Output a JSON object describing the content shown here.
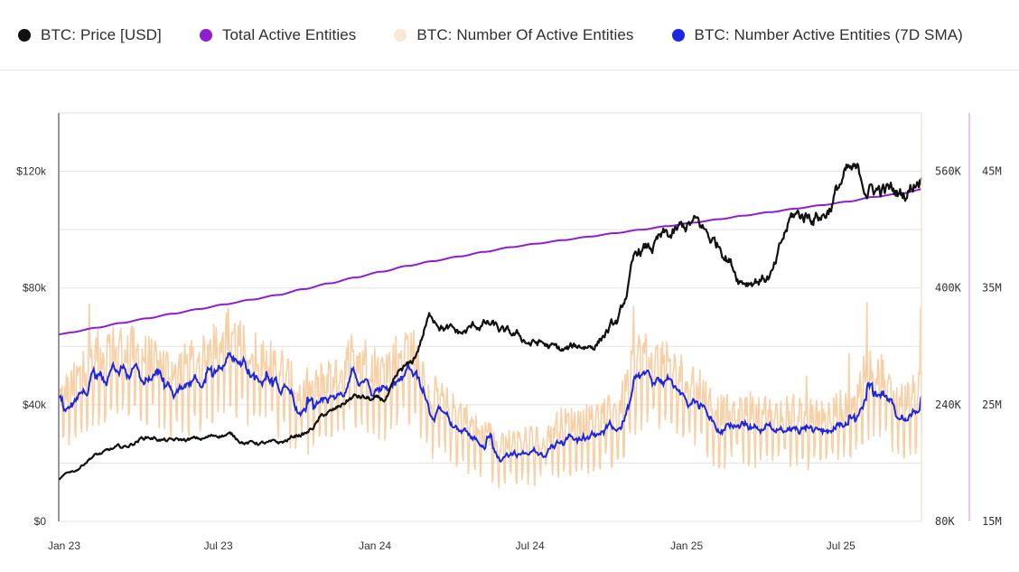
{
  "legend": [
    {
      "label": "BTC: Price [USD]",
      "color": "#111111"
    },
    {
      "label": "Total Active Entities",
      "color": "#8d1fcf"
    },
    {
      "label": "BTC: Number Of Active Entities",
      "color": "#fbe7d3"
    },
    {
      "label": "BTC: Number Active Entities (7D SMA)",
      "color": "#1c28e0"
    }
  ],
  "chart_data": {
    "type": "line",
    "title": "",
    "x_ticks": [
      "Jan 23",
      "Jul 23",
      "Jan 24",
      "Jul 24",
      "Jan 25",
      "Jul 25"
    ],
    "x_range": [
      "2023-01-01",
      "2025-10-10"
    ],
    "months": [
      "2023-01",
      "2023-02",
      "2023-03",
      "2023-04",
      "2023-05",
      "2023-06",
      "2023-07",
      "2023-08",
      "2023-09",
      "2023-10",
      "2023-11",
      "2023-12",
      "2024-01",
      "2024-02",
      "2024-03",
      "2024-04",
      "2024-05",
      "2024-06",
      "2024-07",
      "2024-08",
      "2024-09",
      "2024-10",
      "2024-11",
      "2024-12",
      "2025-01",
      "2025-02",
      "2025-03",
      "2025-04",
      "2025-05",
      "2025-06",
      "2025-07",
      "2025-08",
      "2025-09",
      "2025-10"
    ],
    "axes": {
      "left": {
        "label": "BTC: Price [USD]",
        "ticks": [
          "$0",
          "$40k",
          "$80k",
          "$120k"
        ],
        "tick_values": [
          0,
          40000,
          80000,
          120000
        ],
        "range": [
          0,
          140000
        ]
      },
      "middle": {
        "label": "Number Of Active Entities",
        "ticks": [
          "80K",
          "240K",
          "400K",
          "560K"
        ],
        "tick_values": [
          80000,
          240000,
          400000,
          560000
        ],
        "range": [
          80000,
          640000
        ]
      },
      "right": {
        "label": "Total Active Entities",
        "ticks": [
          "15M",
          "25M",
          "35M",
          "45M"
        ],
        "tick_values": [
          15000000,
          25000000,
          35000000,
          45000000
        ],
        "range": [
          15000000,
          50000000
        ]
      }
    },
    "grid": true,
    "legend_position": "top",
    "series": [
      {
        "name": "BTC: Price [USD]",
        "axis": "left",
        "color": "#111111",
        "values": [
          17000,
          23000,
          25000,
          29000,
          27500,
          28000,
          30000,
          27000,
          26500,
          30000,
          37000,
          42500,
          41000,
          52000,
          70000,
          64000,
          67500,
          63000,
          61000,
          58000,
          60500,
          67000,
          92000,
          96000,
          101000,
          95000,
          84000,
          84500,
          104000,
          106000,
          118000,
          114000,
          112000,
          121000
        ]
      },
      {
        "name": "Total Active Entities",
        "axis": "right",
        "color": "#8d1fcf",
        "values": [
          31200000,
          31600000,
          32000000,
          32400000,
          32800000,
          33200000,
          33600000,
          34000000,
          34400000,
          34900000,
          35400000,
          35900000,
          36400000,
          36900000,
          37300000,
          37700000,
          38100000,
          38500000,
          38800000,
          39100000,
          39400000,
          39700000,
          40000000,
          40300000,
          40600000,
          40900000,
          41200000,
          41500000,
          41800000,
          42100000,
          42400000,
          42800000,
          43100000,
          43500000
        ]
      },
      {
        "name": "BTC: Number Of Active Entities",
        "axis": "middle",
        "color": "#f7c896",
        "style": "daily-raw",
        "values": [
          250000,
          290000,
          300000,
          285000,
          270000,
          280000,
          320000,
          290000,
          275000,
          235000,
          260000,
          290000,
          270000,
          300000,
          235000,
          215000,
          185000,
          175000,
          180000,
          200000,
          205000,
          215000,
          290000,
          275000,
          255000,
          215000,
          220000,
          215000,
          215000,
          210000,
          225000,
          275000,
          230000,
          245000
        ]
      },
      {
        "name": "BTC: Number Active Entities (7D SMA)",
        "axis": "middle",
        "color": "#1c28e0",
        "values": [
          240000,
          290000,
          295000,
          280000,
          265000,
          275000,
          315000,
          285000,
          270000,
          232000,
          258000,
          285000,
          268000,
          296000,
          232000,
          212000,
          182000,
          172000,
          178000,
          198000,
          202000,
          212000,
          285000,
          270000,
          252000,
          212000,
          217000,
          212000,
          213000,
          207000,
          222000,
          270000,
          227000,
          242000
        ]
      }
    ]
  }
}
